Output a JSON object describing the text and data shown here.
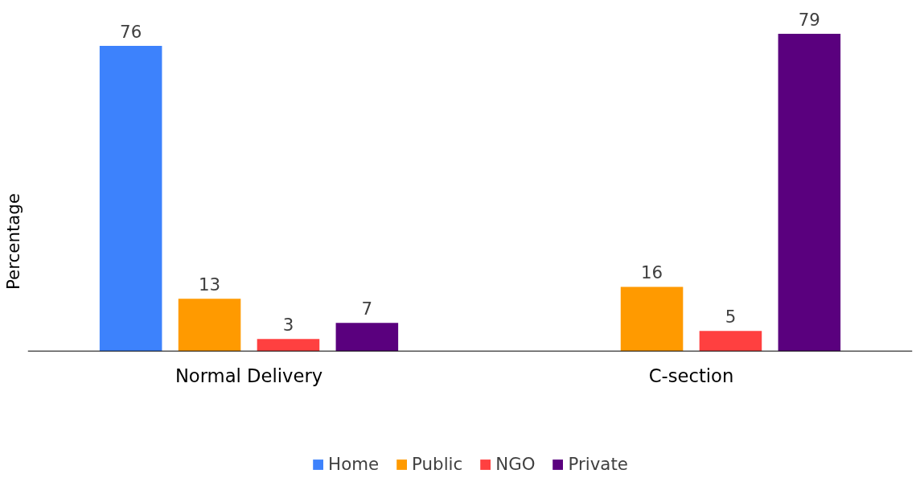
{
  "chart_data": {
    "type": "bar",
    "ylabel": "Percentage",
    "categories": [
      "Normal Delivery",
      "C-section"
    ],
    "series": [
      {
        "name": "Home",
        "color": "#3d82fc",
        "values": [
          76,
          null
        ]
      },
      {
        "name": "Public",
        "color": "#ff9a00",
        "values": [
          13,
          16
        ]
      },
      {
        "name": "NGO",
        "color": "#ff4040",
        "values": [
          3,
          5
        ]
      },
      {
        "name": "Private",
        "color": "#5a007e",
        "values": [
          7,
          79
        ]
      }
    ],
    "data_labels": true,
    "grid": false,
    "legend": "bottom"
  }
}
